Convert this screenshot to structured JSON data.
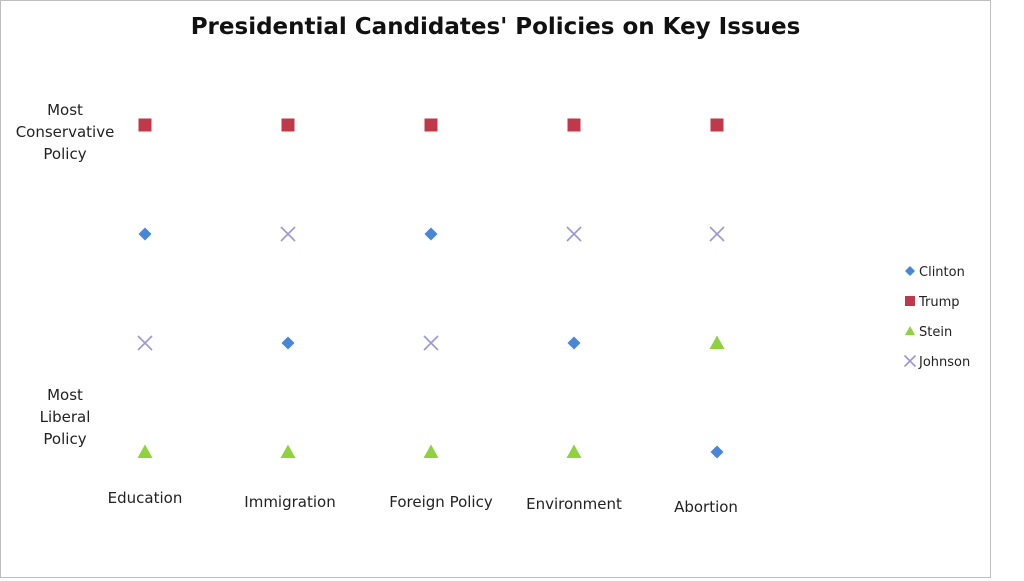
{
  "chart_data": {
    "type": "scatter",
    "title": "Presidential Candidates' Policies on Key Issues",
    "categories": [
      "Education",
      "Immigration",
      "Foreign Policy",
      "Environment",
      "Abortion"
    ],
    "y_levels": 4,
    "y_labels": {
      "top": [
        "Most",
        "Conservative",
        "Policy"
      ],
      "bottom": [
        "Most",
        "Liberal",
        "Policy"
      ]
    },
    "ylim": [
      1,
      4
    ],
    "grid": false,
    "legend_position": "right",
    "series": [
      {
        "name": "Clinton",
        "marker": "diamond",
        "color": "#4a86d8",
        "values": [
          3,
          2,
          3,
          2,
          1
        ]
      },
      {
        "name": "Trump",
        "marker": "square",
        "color": "#c0394b",
        "values": [
          4,
          4,
          4,
          4,
          4
        ]
      },
      {
        "name": "Stein",
        "marker": "triangle",
        "color": "#8fd13f",
        "values": [
          1,
          1,
          1,
          1,
          2
        ]
      },
      {
        "name": "Johnson",
        "marker": "x",
        "color": "#9b97d6",
        "values": [
          2,
          3,
          2,
          3,
          3
        ]
      }
    ]
  }
}
